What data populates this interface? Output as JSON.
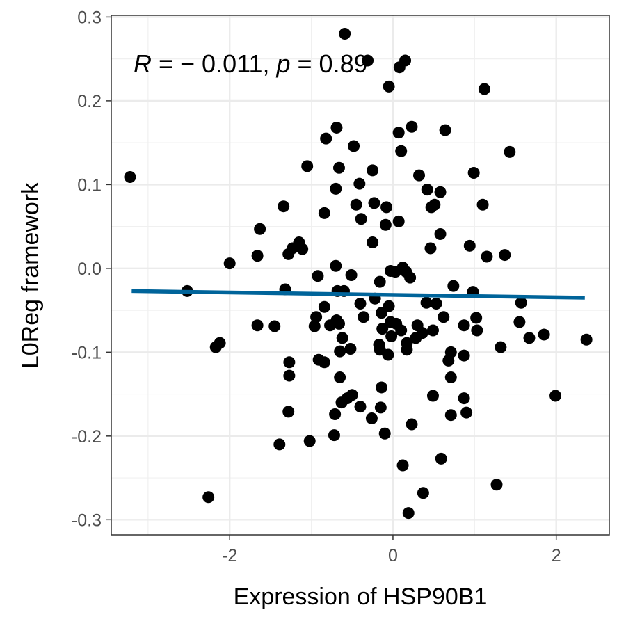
{
  "chart_data": {
    "type": "scatter",
    "title": "",
    "xlabel": "Expression of HSP90B1",
    "ylabel": "L0Reg framework",
    "xlim": [
      -3.45,
      2.65
    ],
    "ylim": [
      -0.318,
      0.302
    ],
    "x_ticks": [
      -2,
      0,
      2
    ],
    "x_tick_labels": [
      "-2",
      "0",
      "2"
    ],
    "y_ticks": [
      -0.3,
      -0.2,
      -0.1,
      0.0,
      0.1,
      0.2,
      0.3
    ],
    "y_tick_labels": [
      "-0.3",
      "-0.2",
      "-0.1",
      "0.0",
      "0.1",
      "0.2",
      "0.3"
    ],
    "grid": true,
    "legend": "none",
    "annotation": {
      "r_label": "R",
      "r_text": " = − 0.011, ",
      "p_label": "p",
      "p_text": " = 0.89"
    },
    "point_color": "#000000",
    "line_color": "#00649a",
    "fit_line": {
      "x": [
        -3.2,
        2.35
      ],
      "y": [
        -0.027,
        -0.035
      ]
    },
    "points": [
      {
        "x": -0.59,
        "y": 0.28
      },
      {
        "x": -0.31,
        "y": 0.248
      },
      {
        "x": 0.08,
        "y": 0.24
      },
      {
        "x": 0.15,
        "y": 0.248
      },
      {
        "x": -0.05,
        "y": 0.217
      },
      {
        "x": 1.12,
        "y": 0.214
      },
      {
        "x": -0.69,
        "y": 0.168
      },
      {
        "x": 0.23,
        "y": 0.169
      },
      {
        "x": 0.07,
        "y": 0.162
      },
      {
        "x": 0.64,
        "y": 0.165
      },
      {
        "x": -0.82,
        "y": 0.155
      },
      {
        "x": -0.48,
        "y": 0.146
      },
      {
        "x": 0.1,
        "y": 0.14
      },
      {
        "x": 1.43,
        "y": 0.139
      },
      {
        "x": -1.05,
        "y": 0.122
      },
      {
        "x": -0.66,
        "y": 0.12
      },
      {
        "x": -0.25,
        "y": 0.117
      },
      {
        "x": 0.32,
        "y": 0.111
      },
      {
        "x": 0.99,
        "y": 0.114
      },
      {
        "x": -3.22,
        "y": 0.109
      },
      {
        "x": -0.7,
        "y": 0.095
      },
      {
        "x": -0.41,
        "y": 0.101
      },
      {
        "x": 0.42,
        "y": 0.094
      },
      {
        "x": 0.58,
        "y": 0.091
      },
      {
        "x": -1.34,
        "y": 0.074
      },
      {
        "x": -0.45,
        "y": 0.076
      },
      {
        "x": -0.23,
        "y": 0.078
      },
      {
        "x": -0.08,
        "y": 0.073
      },
      {
        "x": 0.47,
        "y": 0.073
      },
      {
        "x": 0.51,
        "y": 0.076
      },
      {
        "x": 1.1,
        "y": 0.076
      },
      {
        "x": -0.84,
        "y": 0.066
      },
      {
        "x": -0.39,
        "y": 0.059
      },
      {
        "x": 0.07,
        "y": 0.056
      },
      {
        "x": -0.09,
        "y": 0.052
      },
      {
        "x": -1.63,
        "y": 0.047
      },
      {
        "x": 0.58,
        "y": 0.041
      },
      {
        "x": -0.25,
        "y": 0.031
      },
      {
        "x": -1.15,
        "y": 0.031
      },
      {
        "x": -1.23,
        "y": 0.024
      },
      {
        "x": -1.11,
        "y": 0.023
      },
      {
        "x": 0.46,
        "y": 0.024
      },
      {
        "x": 0.94,
        "y": 0.027
      },
      {
        "x": -1.66,
        "y": 0.015
      },
      {
        "x": -1.28,
        "y": 0.017
      },
      {
        "x": 1.15,
        "y": 0.014
      },
      {
        "x": 1.37,
        "y": 0.016
      },
      {
        "x": -2.0,
        "y": 0.006
      },
      {
        "x": -0.7,
        "y": 0.003
      },
      {
        "x": 0.12,
        "y": 0.001
      },
      {
        "x": -0.03,
        "y": -0.003
      },
      {
        "x": 0.03,
        "y": -0.004
      },
      {
        "x": 0.16,
        "y": -0.004
      },
      {
        "x": 0.21,
        "y": -0.011
      },
      {
        "x": -0.51,
        "y": -0.008
      },
      {
        "x": -0.92,
        "y": -0.009
      },
      {
        "x": -0.16,
        "y": -0.016
      },
      {
        "x": 0.74,
        "y": -0.021
      },
      {
        "x": -1.32,
        "y": -0.025
      },
      {
        "x": -2.52,
        "y": -0.027
      },
      {
        "x": -0.68,
        "y": -0.027
      },
      {
        "x": -0.6,
        "y": -0.027
      },
      {
        "x": 0.98,
        "y": -0.028
      },
      {
        "x": -0.22,
        "y": -0.036
      },
      {
        "x": -0.4,
        "y": -0.042
      },
      {
        "x": 0.41,
        "y": -0.041
      },
      {
        "x": 0.53,
        "y": -0.042
      },
      {
        "x": 1.57,
        "y": -0.041
      },
      {
        "x": -0.05,
        "y": -0.045
      },
      {
        "x": -0.84,
        "y": -0.046
      },
      {
        "x": -0.14,
        "y": -0.053
      },
      {
        "x": -0.94,
        "y": -0.058
      },
      {
        "x": -0.36,
        "y": -0.058
      },
      {
        "x": 0.62,
        "y": -0.058
      },
      {
        "x": 1.02,
        "y": -0.059
      },
      {
        "x": -0.69,
        "y": -0.062
      },
      {
        "x": 1.55,
        "y": -0.064
      },
      {
        "x": -0.66,
        "y": -0.066
      },
      {
        "x": -0.03,
        "y": -0.064
      },
      {
        "x": 0.04,
        "y": -0.066
      },
      {
        "x": 0.3,
        "y": -0.068
      },
      {
        "x": -1.66,
        "y": -0.068
      },
      {
        "x": -1.45,
        "y": -0.069
      },
      {
        "x": -0.96,
        "y": -0.069
      },
      {
        "x": -0.77,
        "y": -0.068
      },
      {
        "x": 0.87,
        "y": -0.068
      },
      {
        "x": -0.13,
        "y": -0.072
      },
      {
        "x": 0.1,
        "y": -0.074
      },
      {
        "x": 0.49,
        "y": -0.074
      },
      {
        "x": 1.03,
        "y": -0.074
      },
      {
        "x": 1.85,
        "y": -0.079
      },
      {
        "x": -0.02,
        "y": -0.081
      },
      {
        "x": 0.36,
        "y": -0.077
      },
      {
        "x": 0.28,
        "y": -0.083
      },
      {
        "x": -0.62,
        "y": -0.083
      },
      {
        "x": 1.67,
        "y": -0.083
      },
      {
        "x": 2.37,
        "y": -0.085
      },
      {
        "x": -2.12,
        "y": -0.089
      },
      {
        "x": 0.17,
        "y": -0.089
      },
      {
        "x": -0.17,
        "y": -0.091
      },
      {
        "x": -2.17,
        "y": -0.094
      },
      {
        "x": -0.52,
        "y": -0.096
      },
      {
        "x": -0.65,
        "y": -0.099
      },
      {
        "x": -0.16,
        "y": -0.097
      },
      {
        "x": 0.17,
        "y": -0.097
      },
      {
        "x": 1.32,
        "y": -0.094
      },
      {
        "x": -0.06,
        "y": -0.103
      },
      {
        "x": 0.71,
        "y": -0.1
      },
      {
        "x": 0.87,
        "y": -0.104
      },
      {
        "x": -0.91,
        "y": -0.109
      },
      {
        "x": -0.84,
        "y": -0.112
      },
      {
        "x": -1.27,
        "y": -0.112
      },
      {
        "x": 0.68,
        "y": -0.11
      },
      {
        "x": -1.27,
        "y": -0.128
      },
      {
        "x": -0.65,
        "y": -0.13
      },
      {
        "x": 0.71,
        "y": -0.13
      },
      {
        "x": -0.14,
        "y": -0.142
      },
      {
        "x": -0.5,
        "y": -0.151
      },
      {
        "x": 0.49,
        "y": -0.152
      },
      {
        "x": 1.99,
        "y": -0.152
      },
      {
        "x": -0.56,
        "y": -0.155
      },
      {
        "x": 0.87,
        "y": -0.155
      },
      {
        "x": -0.63,
        "y": -0.16
      },
      {
        "x": -0.4,
        "y": -0.165
      },
      {
        "x": -0.15,
        "y": -0.166
      },
      {
        "x": -1.28,
        "y": -0.171
      },
      {
        "x": 0.9,
        "y": -0.172
      },
      {
        "x": -0.71,
        "y": -0.174
      },
      {
        "x": 0.71,
        "y": -0.175
      },
      {
        "x": -0.26,
        "y": -0.179
      },
      {
        "x": 0.23,
        "y": -0.186
      },
      {
        "x": -0.1,
        "y": -0.197
      },
      {
        "x": -0.72,
        "y": -0.199
      },
      {
        "x": -1.02,
        "y": -0.206
      },
      {
        "x": -1.39,
        "y": -0.21
      },
      {
        "x": 0.59,
        "y": -0.227
      },
      {
        "x": 0.12,
        "y": -0.235
      },
      {
        "x": 1.27,
        "y": -0.258
      },
      {
        "x": 0.37,
        "y": -0.268
      },
      {
        "x": -2.26,
        "y": -0.273
      },
      {
        "x": 0.19,
        "y": -0.292
      }
    ]
  }
}
